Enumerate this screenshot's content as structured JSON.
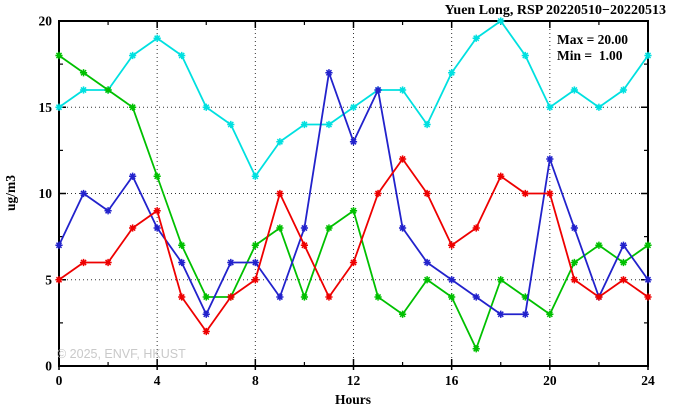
{
  "chart": {
    "title": "Yuen Long, RSP 20220510−20220513",
    "max_label": "Max = 20.00",
    "min_label": "Min =  1.00",
    "xlabel": "Hours",
    "ylabel": "ug/m3",
    "watermark": "© 2025, ENVF, HKUST"
  },
  "chart_data": {
    "type": "line",
    "title": "Yuen Long, RSP 20220510−20220513",
    "xlabel": "Hours",
    "ylabel": "ug/m3",
    "xlim": [
      0,
      24
    ],
    "ylim": [
      0,
      20
    ],
    "grid": true,
    "legend_position": "top-right-inside-annotations-only",
    "annotations": {
      "max": "Max = 20.00",
      "min": "Min =  1.00"
    },
    "x": [
      0,
      1,
      2,
      3,
      4,
      5,
      6,
      7,
      8,
      9,
      10,
      11,
      12,
      13,
      14,
      15,
      16,
      17,
      18,
      19,
      20,
      21,
      22,
      23,
      24
    ],
    "series": [
      {
        "name": "series-cyan",
        "color": "#00E0E0",
        "values": [
          15,
          16,
          16,
          18,
          19,
          18,
          15,
          14,
          11,
          13,
          14,
          14,
          15,
          16,
          16,
          14,
          17,
          19,
          20,
          18,
          15,
          16,
          15,
          16,
          18
        ]
      },
      {
        "name": "series-green",
        "color": "#00C000",
        "values": [
          18,
          17,
          16,
          15,
          11,
          7,
          4,
          4,
          7,
          8,
          4,
          8,
          9,
          4,
          3,
          5,
          4,
          1,
          5,
          4,
          3,
          6,
          7,
          6,
          7
        ]
      },
      {
        "name": "series-blue",
        "color": "#2222CC",
        "values": [
          7,
          10,
          9,
          11,
          8,
          6,
          3,
          6,
          6,
          4,
          8,
          17,
          13,
          16,
          8,
          6,
          5,
          4,
          3,
          3,
          12,
          8,
          4,
          7,
          5
        ]
      },
      {
        "name": "series-red",
        "color": "#EE0000",
        "values": [
          5,
          6,
          6,
          8,
          9,
          4,
          2,
          4,
          5,
          10,
          7,
          4,
          6,
          10,
          12,
          10,
          7,
          8,
          11,
          10,
          10,
          5,
          4,
          5,
          4
        ]
      }
    ],
    "x_major_ticks": [
      0,
      4,
      8,
      12,
      16,
      20,
      24
    ],
    "x_minor_ticks": [
      2,
      6,
      10,
      14,
      18,
      22
    ],
    "y_major_ticks": [
      0,
      5,
      10,
      15,
      20
    ],
    "y_minor_ticks": [
      2.5,
      7.5,
      12.5,
      17.5
    ],
    "grid_x": [
      4,
      8,
      12,
      16,
      20
    ],
    "grid_y": [
      5,
      10,
      15
    ]
  }
}
